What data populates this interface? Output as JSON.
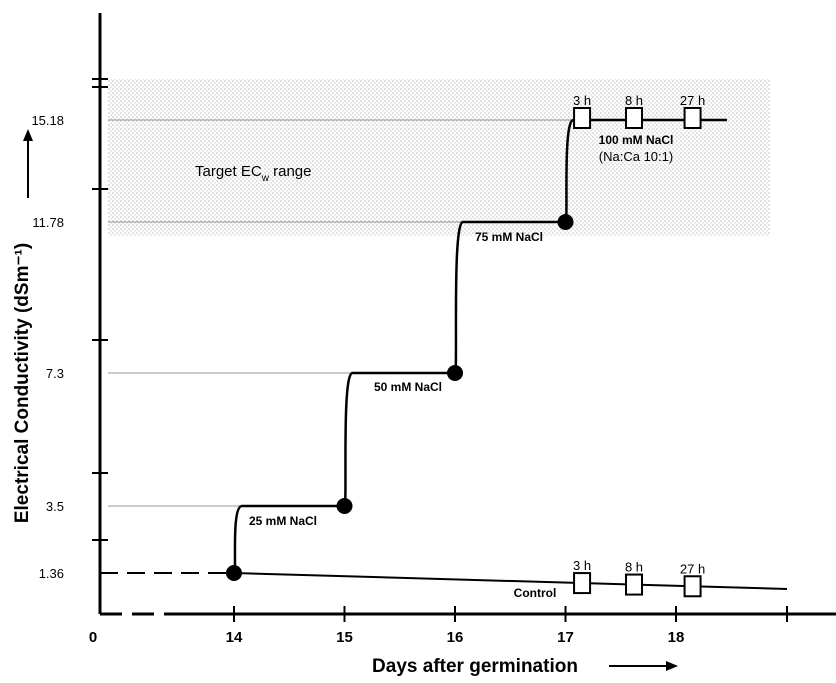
{
  "chart_data": {
    "type": "line",
    "xlabel": "Days after germination",
    "ylabel": "Electrical Conductivity (dSm⁻¹)",
    "origin_label": "0",
    "x_ticks": [
      14,
      15,
      16,
      17,
      18
    ],
    "y_ticks": [
      1.36,
      3.5,
      7.3,
      11.78,
      15.18
    ],
    "y_tick_labels": [
      "1.36",
      "3.5",
      "7.3",
      "11.78",
      "15.18"
    ],
    "target_range": {
      "label": "Target EC",
      "label_sub": "w",
      "label_suffix": " range",
      "y_min": 11.35,
      "y_max": 16.3
    },
    "series": [
      {
        "name": "",
        "points": [
          [
            14,
            1.36
          ],
          [
            15,
            3.5
          ],
          [
            16,
            7.3
          ],
          [
            17,
            11.78
          ],
          [
            18.4,
            15.18
          ]
        ]
      },
      {
        "name": "Control",
        "points": [
          [
            14,
            1.36
          ],
          [
            19,
            0.95
          ]
        ]
      }
    ],
    "step_markers": [
      {
        "x": 14,
        "y": 1.36,
        "label": "25 mM NaCl"
      },
      {
        "x": 15,
        "y": 3.5,
        "label": "50 mM NaCl"
      },
      {
        "x": 16,
        "y": 7.3,
        "label": "75 mM NaCl"
      },
      {
        "x": 17,
        "y": 11.78,
        "label": "100 mM NaCl",
        "sublabel": "(Na:Ca 10:1)"
      }
    ],
    "sampling_points": [
      {
        "x": 17.15,
        "label": "3 h"
      },
      {
        "x": 17.62,
        "label": "8 h"
      },
      {
        "x": 18.15,
        "label": "27 h"
      }
    ],
    "control_label": "Control",
    "grid": false
  }
}
